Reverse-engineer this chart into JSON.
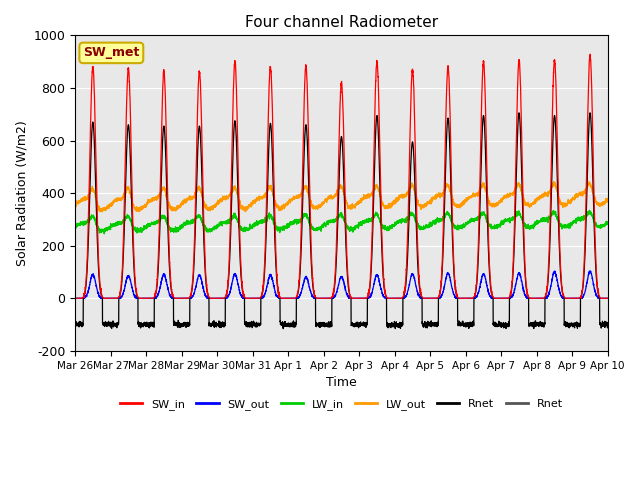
{
  "title": "Four channel Radiometer",
  "xlabel": "Time",
  "ylabel": "Solar Radiation (W/m2)",
  "ylim": [
    -200,
    1000
  ],
  "background_color": "#e8e8e8",
  "legend_label": "SW_met",
  "x_tick_labels": [
    "Mar 26",
    "Mar 27",
    "Mar 28",
    "Mar 29",
    "Mar 30",
    "Mar 31",
    "Apr 1",
    "Apr 2",
    "Apr 3",
    "Apr 4",
    "Apr 5",
    "Apr 6",
    "Apr 7",
    "Apr 8",
    "Apr 9",
    "Apr 10"
  ],
  "series": {
    "SW_in": {
      "color": "#ff0000",
      "label": "SW_in"
    },
    "SW_out": {
      "color": "#0000ff",
      "label": "SW_out"
    },
    "LW_in": {
      "color": "#00cc00",
      "label": "LW_in"
    },
    "LW_out": {
      "color": "#ff9900",
      "label": "LW_out"
    },
    "Rnet": {
      "color": "#000000",
      "label": "Rnet"
    },
    "Rnet2": {
      "color": "#555555",
      "label": "Rnet"
    }
  },
  "num_days": 15,
  "points_per_day": 288
}
